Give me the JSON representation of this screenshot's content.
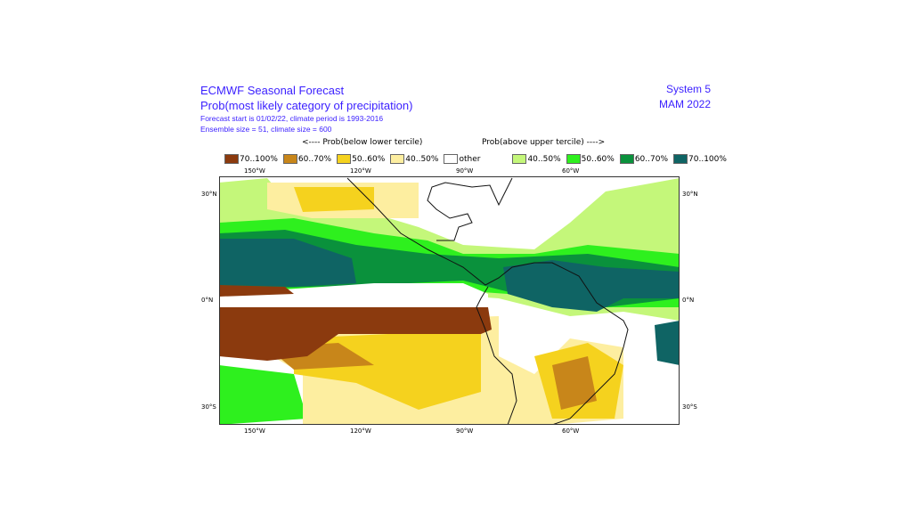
{
  "header": {
    "title": "ECMWF Seasonal Forecast",
    "subtitle": "Prob(most likely category of precipitation)",
    "line1": "Forecast start is 01/02/22, climate period is 1993-2016",
    "line2": "Ensemble size = 51, climate size = 600",
    "system": "System 5",
    "period": "MAM 2022"
  },
  "legend": {
    "below_label": "<---- Prob(below lower tercile)",
    "above_label": "Prob(above upper tercile) ---->",
    "items": [
      {
        "label": "70..100%",
        "color": "#8b3a0e"
      },
      {
        "label": "60..70%",
        "color": "#c8861a"
      },
      {
        "label": "50..60%",
        "color": "#f5d21e"
      },
      {
        "label": "40..50%",
        "color": "#fdeea0"
      },
      {
        "label": "other",
        "color": "#ffffff"
      },
      {
        "label": "40..50%",
        "color": "#c4f77a"
      },
      {
        "label": "50..60%",
        "color": "#2ef01e"
      },
      {
        "label": "60..70%",
        "color": "#0a913c"
      },
      {
        "label": "70..100%",
        "color": "#0f6464"
      }
    ]
  },
  "axes": {
    "lon": [
      "150°W",
      "120°W",
      "90°W",
      "60°W"
    ],
    "lat": [
      "30°N",
      "0°N",
      "30°S"
    ]
  }
}
